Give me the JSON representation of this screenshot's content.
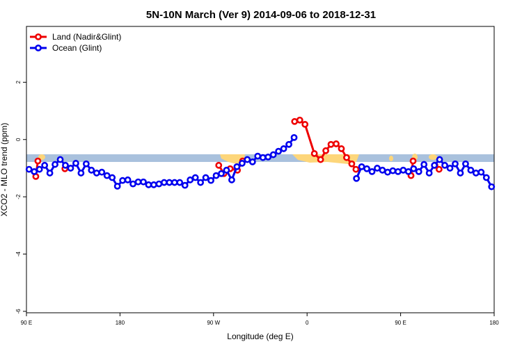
{
  "chart_data": {
    "type": "line",
    "title": "5N-10N March (Ver 9)   2014-09-06 to 2018-12-31",
    "x_label": "Longitude (deg E)",
    "y_label": "XCO2 - MLO trend (ppm)",
    "xlim": [
      90,
      540
    ],
    "ylim": [
      -6.05,
      3.95
    ],
    "xticks": [
      {
        "value": 90,
        "label": "90 E"
      },
      180,
      {
        "value": 270,
        "label": "90 W"
      },
      {
        "value": 360,
        "label": "0"
      },
      {
        "value": 450,
        "label": "90 E"
      },
      {
        "value": 540,
        "label": "180"
      }
    ],
    "yticks": [
      -6,
      -4,
      -2,
      0,
      2
    ],
    "legend": "top-left",
    "series": [
      {
        "name": "Land (Nadir&Glint)",
        "color": "#ee0000",
        "x": [
          99,
          101,
          null,
          127,
          null,
          275,
          280,
          286,
          293,
          298,
          null,
          348,
          353,
          358,
          367,
          373,
          378,
          383,
          388,
          393,
          398,
          403,
          407,
          null,
          460,
          462,
          null,
          483,
          487
        ],
        "values": [
          -1.29,
          -0.75,
          null,
          -1.02,
          null,
          -0.9,
          -1.19,
          -1.02,
          -1.07,
          -0.75,
          null,
          0.63,
          0.68,
          0.53,
          -0.49,
          -0.7,
          -0.39,
          -0.17,
          -0.15,
          -0.32,
          -0.63,
          -0.85,
          -1.04,
          null,
          -1.26,
          -0.75,
          null,
          -0.9,
          -1.04
        ]
      },
      {
        "name": "Ocean (Glint)",
        "color": "#0000ee",
        "x": [
          92.5,
          97.5,
          102.5,
          107.5,
          112.5,
          117.5,
          122.5,
          127.5,
          132.5,
          137.5,
          142.5,
          147.5,
          152.5,
          157.5,
          162.5,
          167.5,
          172.5,
          177.5,
          182.5,
          187.5,
          192.5,
          197.5,
          202.5,
          207.5,
          212.5,
          217.5,
          222.5,
          227.5,
          232.5,
          237.5,
          242.5,
          247.5,
          252.5,
          257.5,
          262.5,
          267.5,
          272.5,
          277.5,
          282.5,
          287.5,
          292.5,
          297.5,
          302.5,
          307.5,
          312.5,
          317.5,
          322.5,
          327.5,
          332.5,
          337.5,
          342.5,
          347.5,
          352.5,
          357.5,
          362.5,
          367.5,
          372.5,
          377.5,
          382.5,
          387.5,
          392.5,
          397.5,
          402.5,
          407.5,
          412.5,
          417.5,
          422.5,
          427.5,
          432.5,
          437.5,
          442.5,
          447.5,
          452.5,
          457.5,
          462.5,
          467.5,
          472.5,
          477.5,
          482.5,
          487.5,
          492.5,
          497.5,
          502.5,
          507.5,
          512.5,
          517.5,
          522.5,
          527.5,
          532.5,
          537.5
        ],
        "values": [
          -1.04,
          -1.12,
          -1.04,
          -0.9,
          -1.17,
          -0.87,
          -0.7,
          -0.9,
          -1.0,
          -0.83,
          -1.17,
          -0.85,
          -1.07,
          -1.17,
          -1.14,
          -1.26,
          -1.33,
          -1.63,
          -1.43,
          -1.41,
          -1.55,
          -1.48,
          -1.48,
          -1.58,
          -1.58,
          -1.55,
          -1.5,
          -1.5,
          -1.5,
          -1.5,
          -1.6,
          -1.41,
          -1.33,
          -1.5,
          -1.33,
          -1.43,
          -1.26,
          -1.19,
          -1.07,
          -1.41,
          -0.95,
          -0.83,
          -0.7,
          -0.78,
          -0.58,
          -0.63,
          -0.61,
          -0.53,
          -0.41,
          -0.32,
          -0.17,
          0.07,
          null,
          null,
          null,
          null,
          null,
          null,
          null,
          null,
          null,
          null,
          null,
          -1.36,
          -0.95,
          -1.02,
          -1.12,
          -1.0,
          -1.07,
          -1.14,
          -1.09,
          -1.12,
          -1.07,
          -1.12,
          -1.02,
          -1.12,
          -0.87,
          -1.17,
          -0.9,
          -0.7,
          -0.9,
          -1.0,
          -0.85,
          -1.17,
          -0.85,
          -1.07,
          -1.17,
          -1.14,
          -1.33,
          -1.65
        ]
      }
    ]
  }
}
